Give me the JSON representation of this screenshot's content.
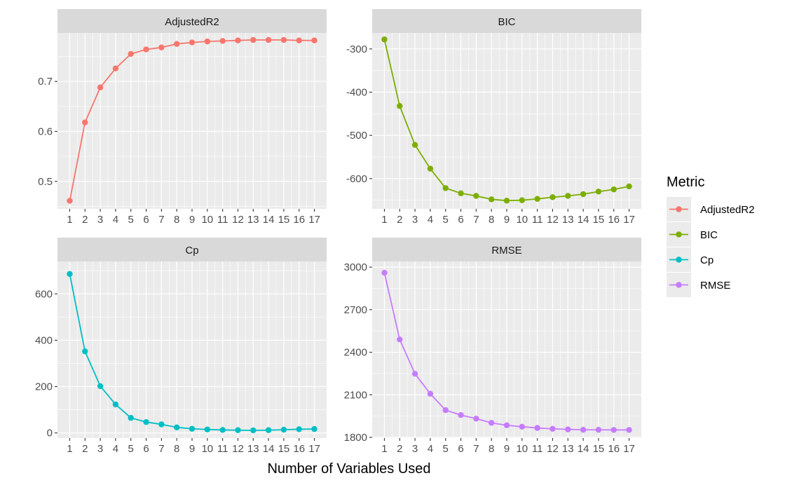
{
  "chart_data": {
    "type": "line",
    "layout": "facet-grid-2x2",
    "xlabel": "Number of Variables Used",
    "x": [
      1,
      2,
      3,
      4,
      5,
      6,
      7,
      8,
      9,
      10,
      11,
      12,
      13,
      14,
      15,
      16,
      17
    ],
    "x_tick_labels": [
      "1",
      "2",
      "3",
      "4",
      "5",
      "6",
      "7",
      "8",
      "9",
      "10",
      "11",
      "12",
      "13",
      "14",
      "15",
      "16",
      "17"
    ],
    "grid": true,
    "legend": {
      "title": "Metric",
      "position": "right",
      "entries": [
        "AdjustedR2",
        "BIC",
        "Cp",
        "RMSE"
      ]
    },
    "panels": [
      {
        "name": "AdjustedR2",
        "color": "#F8766D",
        "ylim": [
          0.445,
          0.797
        ],
        "yticks": [
          0.5,
          0.6,
          0.7
        ],
        "ytick_labels": [
          "0.5",
          "0.6",
          "0.7"
        ],
        "values": [
          0.461,
          0.618,
          0.688,
          0.726,
          0.755,
          0.764,
          0.768,
          0.775,
          0.778,
          0.78,
          0.781,
          0.782,
          0.783,
          0.783,
          0.783,
          0.782,
          0.782
        ]
      },
      {
        "name": "BIC",
        "color": "#7CAE00",
        "ylim": [
          -670,
          -263
        ],
        "yticks": [
          -600,
          -500,
          -400,
          -300
        ],
        "ytick_labels": [
          "-600",
          "-500",
          "-400",
          "-300"
        ],
        "values": [
          -278,
          -432,
          -522,
          -577,
          -622,
          -634,
          -640,
          -648,
          -651,
          -650,
          -647,
          -643,
          -640,
          -636,
          -630,
          -625,
          -618
        ]
      },
      {
        "name": "Cp",
        "color": "#00BFC4",
        "ylim": [
          -22,
          740
        ],
        "yticks": [
          0,
          200,
          400,
          600
        ],
        "ytick_labels": [
          "0",
          "200",
          "400",
          "600"
        ],
        "values": [
          686,
          352,
          202,
          123,
          65,
          47,
          37,
          24,
          18,
          15,
          13,
          12,
          11,
          12,
          14,
          16,
          17
        ]
      },
      {
        "name": "RMSE",
        "color": "#C77CFF",
        "ylim": [
          1795,
          3040
        ],
        "yticks": [
          1800,
          2100,
          2400,
          2700,
          3000
        ],
        "ytick_labels": [
          "1800",
          "2100",
          "2400",
          "2700",
          "3000"
        ],
        "values": [
          2960,
          2490,
          2248,
          2107,
          1992,
          1957,
          1932,
          1902,
          1885,
          1875,
          1866,
          1860,
          1856,
          1853,
          1853,
          1852,
          1852
        ]
      }
    ]
  }
}
